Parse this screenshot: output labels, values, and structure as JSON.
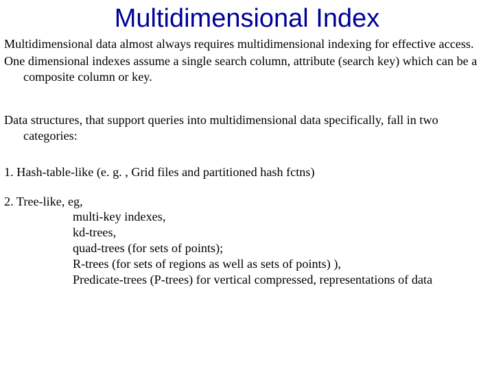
{
  "title": "Multidimensional Index",
  "p1": "Multidimensional data almost always requires multidimensional indexing for effective access.",
  "p2": "One dimensional indexes assume a single search column, attribute (search key) which can be a composite column or key.",
  "p3": "Data structures, that support queries into multidimensional data specifically, fall in two categories:",
  "p4": "1. Hash-table-like (e. g. , Grid files and partitioned hash fctns)",
  "p5_head": "2. Tree-like, eg,",
  "tree_items": {
    "a": "multi-key indexes,",
    "b": "kd-trees,",
    "c": "quad-trees (for sets of points);",
    "d": "R-trees (for sets of regions as well as sets of points) ),",
    "e": "Predicate-trees (P-trees) for vertical compressed, representations of data"
  },
  "colors": {
    "title": "#000099",
    "body_text": "#000000",
    "background": "#ffffff"
  },
  "typography": {
    "title_font": "Arial",
    "title_size_pt": 29,
    "body_font": "Times New Roman",
    "body_size_pt": 14
  }
}
